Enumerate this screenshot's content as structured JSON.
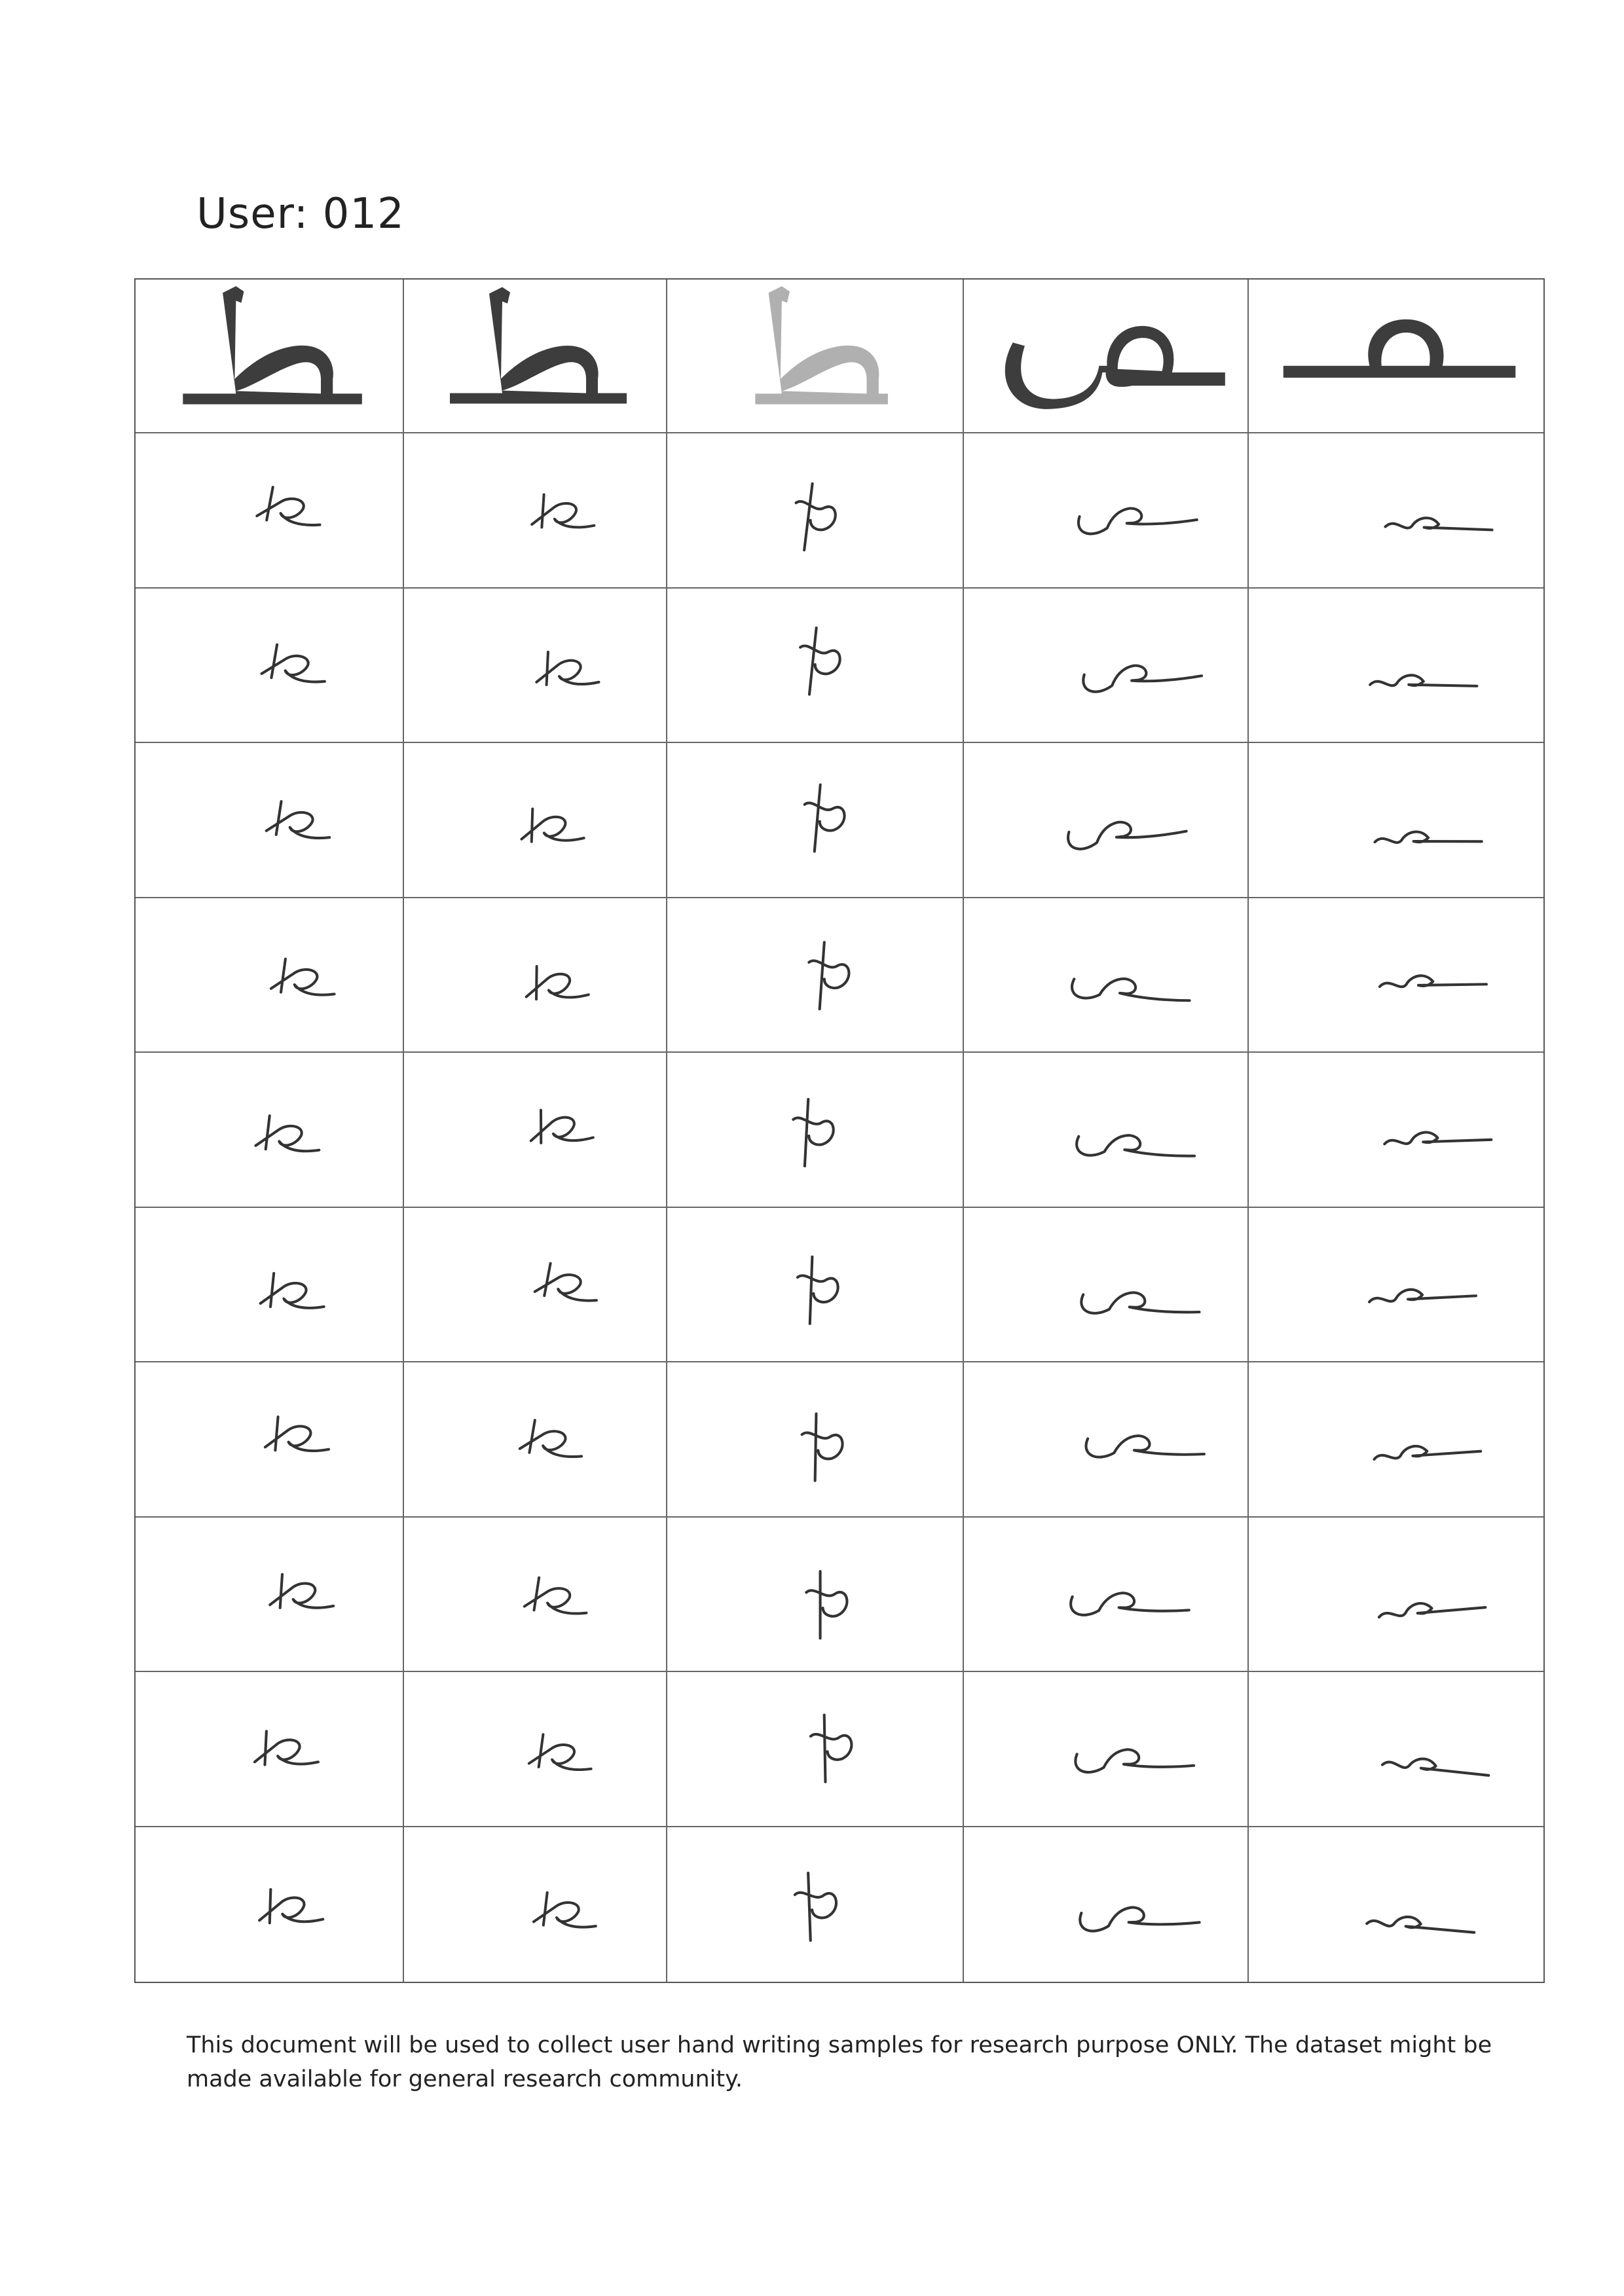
{
  "document": {
    "user_label": "User: 012",
    "footer_text": "This document will be used to collect user hand writing samples for research purpose ONLY. The dataset might be made available for general research community."
  },
  "grid": {
    "columns": [
      {
        "reference": "ط",
        "style": "print",
        "sample": "tah"
      },
      {
        "reference": "ط",
        "style": "print",
        "sample": "tah"
      },
      {
        "reference": "ط",
        "style": "faded",
        "sample": "tah-upright"
      },
      {
        "reference": "ص",
        "style": "print",
        "sample": "sad-isolated"
      },
      {
        "reference": "صـ",
        "style": "print",
        "sample": "sad-initial"
      }
    ],
    "handwritten_rows": 10
  },
  "colors": {
    "ink": "#333333",
    "print": "#3d3d3d",
    "faded": "#b0b0b0",
    "grid": "#666666"
  }
}
